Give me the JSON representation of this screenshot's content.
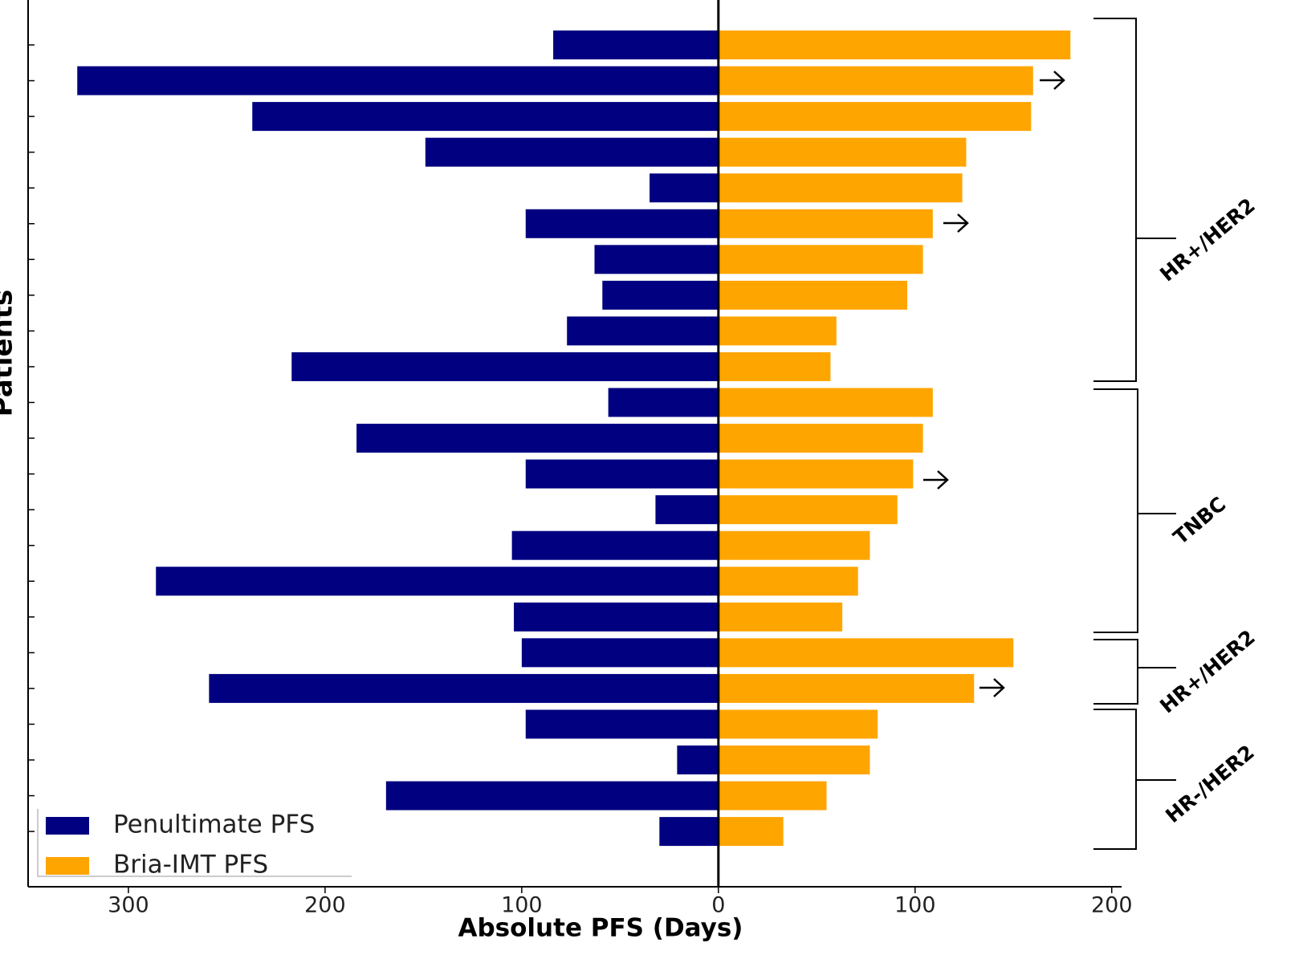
{
  "chart_data": {
    "type": "bar",
    "orientation": "horizontal",
    "stacked": false,
    "x_label": "Absolute PFS (Days)",
    "y_label": "Patients",
    "categories": [
      null,
      null,
      null,
      null,
      null,
      null,
      null,
      null,
      null,
      null,
      null,
      null,
      null,
      null,
      null,
      null,
      null,
      null,
      null,
      null,
      null,
      null,
      null
    ],
    "series": [
      {
        "name": "Penultimate PFS",
        "color": "#000080",
        "values": [
          -84,
          -326,
          -237,
          -149,
          -35,
          -98,
          -63,
          -59,
          -77,
          -217,
          -56,
          -184,
          -98,
          -32,
          -105,
          -286,
          -104,
          -100,
          -259,
          -98,
          -21,
          -169,
          -30
        ]
      },
      {
        "name": "Bria-IMT PFS",
        "color": "#ffa500",
        "values": [
          179,
          160,
          159,
          126,
          124,
          109,
          104,
          96,
          60,
          57,
          109,
          104,
          99,
          91,
          77,
          71,
          63,
          150,
          130,
          81,
          77,
          55,
          33
        ]
      }
    ],
    "xlim": [
      -351,
      205
    ],
    "xticks": [
      {
        "value": -300,
        "label": "300"
      },
      {
        "value": -200,
        "label": "200"
      },
      {
        "value": -100,
        "label": "100"
      },
      0,
      100,
      200
    ],
    "legend": "lower left",
    "groups": [
      "HR+/HER2",
      "TNBC",
      "HR+/HER2",
      "HR-/HER2"
    ]
  }
}
